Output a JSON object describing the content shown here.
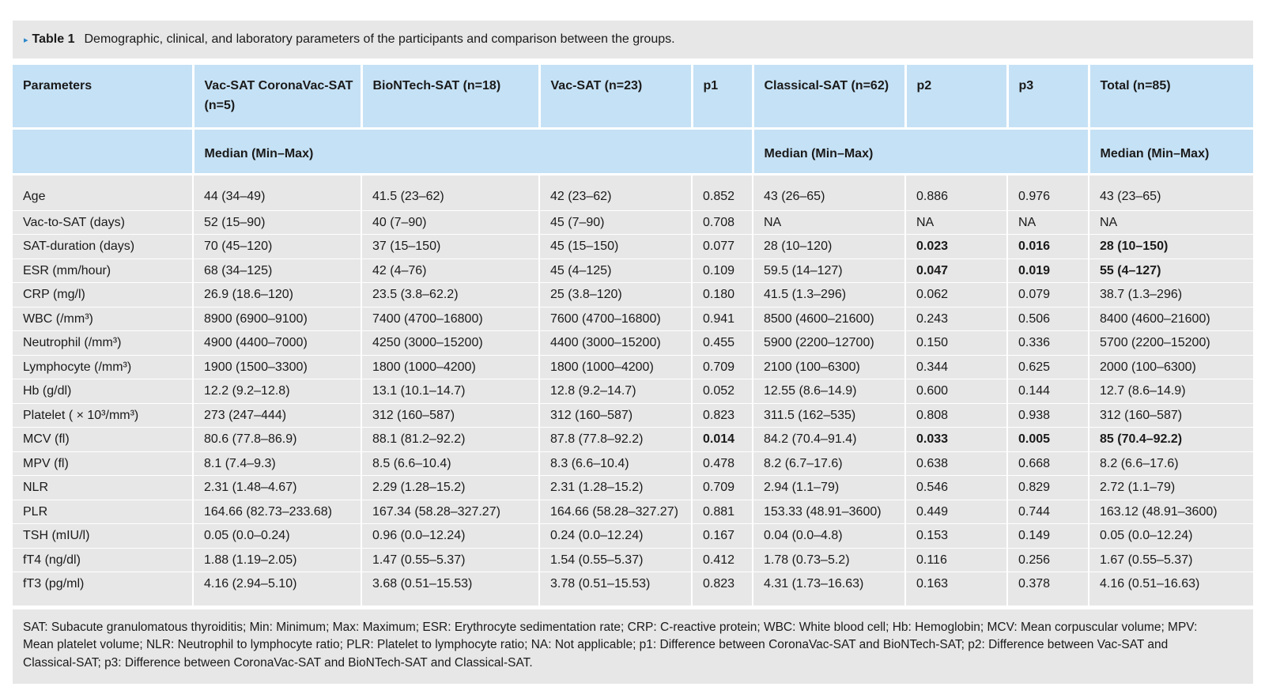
{
  "caption": {
    "marker": "▸",
    "number": "Table 1",
    "text": "Demographic, clinical, and laboratory parameters of the participants and comparison between the groups."
  },
  "headers": [
    "Parameters",
    "Vac-SAT CoronaVac-SAT (n=5)",
    "BioNTech-SAT (n=18)",
    "Vac-SAT (n=23)",
    "p1",
    "Classical-SAT (n=62)",
    "p2",
    "p3",
    "Total (n=85)"
  ],
  "subheader": {
    "vac": "Median (Min–Max)",
    "classical": "Median (Min–Max)",
    "total": "Median (Min–Max)"
  },
  "rows": [
    [
      "Age",
      "44 (34–49)",
      "41.5 (23–62)",
      "42 (23–62)",
      "0.852",
      "43 (26–65)",
      "0.886",
      "0.976",
      "43 (23–65)"
    ],
    [
      "Vac-to-SAT (days)",
      "52 (15–90)",
      "40 (7–90)",
      "45 (7–90)",
      "0.708",
      "NA",
      "NA",
      "NA",
      "NA"
    ],
    [
      "SAT-duration (days)",
      "70 (45–120)",
      "37 (15–150)",
      "45 (15–150)",
      "0.077",
      "28 (10–120)",
      "0.023",
      "0.016",
      "28 (10–150)"
    ],
    [
      "ESR (mm/hour)",
      "68 (34–125)",
      "42 (4–76)",
      "45 (4–125)",
      "0.109",
      "59.5 (14–127)",
      "0.047",
      "0.019",
      "55 (4–127)"
    ],
    [
      "CRP (mg/l)",
      "26.9 (18.6–120)",
      "23.5 (3.8–62.2)",
      "25 (3.8–120)",
      "0.180",
      "41.5 (1.3–296)",
      "0.062",
      "0.079",
      "38.7 (1.3–296)"
    ],
    [
      "WBC (/mm³)",
      "8900 (6900–9100)",
      "7400 (4700–16800)",
      "7600 (4700–16800)",
      "0.941",
      "8500 (4600–21600)",
      "0.243",
      "0.506",
      "8400 (4600–21600)"
    ],
    [
      "Neutrophil (/mm³)",
      "4900 (4400–7000)",
      "4250 (3000–15200)",
      "4400 (3000–15200)",
      "0.455",
      "5900 (2200–12700)",
      "0.150",
      "0.336",
      "5700 (2200–15200)"
    ],
    [
      "Lymphocyte (/mm³)",
      "1900 (1500–3300)",
      "1800 (1000–4200)",
      "1800 (1000–4200)",
      "0.709",
      "2100 (100–6300)",
      "0.344",
      "0.625",
      "2000 (100–6300)"
    ],
    [
      "Hb (g/dl)",
      "12.2 (9.2–12.8)",
      "13.1 (10.1–14.7)",
      "12.8 (9.2–14.7)",
      "0.052",
      "12.55 (8.6–14.9)",
      "0.600",
      "0.144",
      "12.7 (8.6–14.9)"
    ],
    [
      "Platelet ( × 10³/mm³)",
      "273 (247–444)",
      "312 (160–587)",
      "312 (160–587)",
      "0.823",
      "311.5 (162–535)",
      "0.808",
      "0.938",
      "312 (160–587)"
    ],
    [
      "MCV (fl)",
      "80.6 (77.8–86.9)",
      "88.1 (81.2–92.2)",
      "87.8 (77.8–92.2)",
      "0.014",
      "84.2 (70.4–91.4)",
      "0.033",
      "0.005",
      "85 (70.4–92.2)"
    ],
    [
      "MPV (fl)",
      "8.1 (7.4–9.3)",
      "8.5 (6.6–10.4)",
      "8.3 (6.6–10.4)",
      "0.478",
      "8.2 (6.7–17.6)",
      "0.638",
      "0.668",
      "8.2 (6.6–17.6)"
    ],
    [
      "NLR",
      "2.31 (1.48–4.67)",
      "2.29 (1.28–15.2)",
      "2.31 (1.28–15.2)",
      "0.709",
      "2.94 (1.1–79)",
      "0.546",
      "0.829",
      "2.72 (1.1–79)"
    ],
    [
      "PLR",
      "164.66 (82.73–233.68)",
      "167.34 (58.28–327.27)",
      "164.66 (58.28–327.27)",
      "0.881",
      "153.33 (48.91–3600)",
      "0.449",
      "0.744",
      "163.12 (48.91–3600)"
    ],
    [
      "TSH (mIU/l)",
      "0.05 (0.0–0.24)",
      "0.96 (0.0–12.24)",
      "0.24 (0.0–12.24)",
      "0.167",
      "0.04 (0.0–4.8)",
      "0.153",
      "0.149",
      "0.05 (0.0–12.24)"
    ],
    [
      "fT4 (ng/dl)",
      "1.88 (1.19–2.05)",
      "1.47 (0.55–5.37)",
      "1.54 (0.55–5.37)",
      "0.412",
      "1.78 (0.73–5.2)",
      "0.116",
      "0.256",
      "1.67 (0.55–5.37)"
    ],
    [
      "fT3 (pg/ml)",
      "4.16 (2.94–5.10)",
      "3.68 (0.51–15.53)",
      "3.78 (0.51–15.53)",
      "0.823",
      "4.31 (1.73–16.63)",
      "0.163",
      "0.378",
      "4.16 (0.51–16.63)"
    ]
  ],
  "bold_cells": [
    [
      2,
      6
    ],
    [
      2,
      7
    ],
    [
      2,
      8
    ],
    [
      3,
      6
    ],
    [
      3,
      7
    ],
    [
      3,
      8
    ],
    [
      10,
      4
    ],
    [
      10,
      6
    ],
    [
      10,
      7
    ],
    [
      10,
      8
    ]
  ],
  "footnote": "SAT: Subacute granulomatous thyroiditis; Min: Minimum; Max: Maximum; ESR: Erythrocyte sedimentation rate; CRP: C-reactive protein; WBC: White blood cell; Hb: Hemoglobin; MCV: Mean corpuscular volume; MPV: Mean platelet volume; NLR: Neutrophil to lymphocyte ratio; PLR: Platelet to lymphocyte ratio; NA: Not applicable; p1: Difference between CoronaVac-SAT and BioNTech-SAT; p2: Difference between Vac-SAT and Classical-SAT; p3: Difference between CoronaVac-SAT and BioNTech-SAT and Classical-SAT."
}
